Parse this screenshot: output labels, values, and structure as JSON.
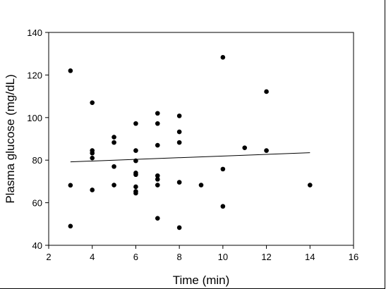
{
  "chart_data": {
    "type": "scatter",
    "title": "",
    "xlabel": "Time (min)",
    "ylabel": "Plasma glucose (mg/dL)",
    "xlim": [
      2,
      16
    ],
    "ylim": [
      40,
      140
    ],
    "xticks": [
      2,
      4,
      6,
      8,
      10,
      12,
      14,
      16
    ],
    "yticks": [
      40,
      60,
      80,
      100,
      120,
      140
    ],
    "xtick_labels": [
      "2",
      "4",
      "6",
      "8",
      "10",
      "12",
      "14",
      "16"
    ],
    "ytick_labels": [
      "40",
      "60",
      "80",
      "100",
      "120",
      "140"
    ],
    "grid": false,
    "legend": "none",
    "point_color": "#000000",
    "points": [
      {
        "x": 3,
        "y": 122
      },
      {
        "x": 3,
        "y": 68.2
      },
      {
        "x": 3,
        "y": 49
      },
      {
        "x": 4,
        "y": 107
      },
      {
        "x": 4,
        "y": 84.5
      },
      {
        "x": 4,
        "y": 83.3
      },
      {
        "x": 4,
        "y": 81
      },
      {
        "x": 4,
        "y": 66
      },
      {
        "x": 5,
        "y": 90.8
      },
      {
        "x": 5,
        "y": 88.3
      },
      {
        "x": 5,
        "y": 77
      },
      {
        "x": 5,
        "y": 68.3
      },
      {
        "x": 6,
        "y": 97.2
      },
      {
        "x": 6,
        "y": 84.5
      },
      {
        "x": 6,
        "y": 79.7
      },
      {
        "x": 6,
        "y": 74
      },
      {
        "x": 6,
        "y": 73.2
      },
      {
        "x": 6,
        "y": 67.5
      },
      {
        "x": 6,
        "y": 65.3
      },
      {
        "x": 6,
        "y": 64.5
      },
      {
        "x": 7,
        "y": 102
      },
      {
        "x": 7,
        "y": 97.2
      },
      {
        "x": 7,
        "y": 87
      },
      {
        "x": 7,
        "y": 72.7
      },
      {
        "x": 7,
        "y": 71
      },
      {
        "x": 7,
        "y": 68.3
      },
      {
        "x": 7,
        "y": 52.7
      },
      {
        "x": 8,
        "y": 100.8
      },
      {
        "x": 8,
        "y": 93.3
      },
      {
        "x": 8,
        "y": 88.3
      },
      {
        "x": 8,
        "y": 69.6
      },
      {
        "x": 8,
        "y": 48.3
      },
      {
        "x": 9,
        "y": 68.3
      },
      {
        "x": 10,
        "y": 128.3
      },
      {
        "x": 10,
        "y": 75.8
      },
      {
        "x": 10,
        "y": 58.3
      },
      {
        "x": 11,
        "y": 85.8
      },
      {
        "x": 12,
        "y": 112.2
      },
      {
        "x": 12,
        "y": 84.5
      },
      {
        "x": 14,
        "y": 68.3
      }
    ],
    "trend_line": {
      "x": [
        3,
        14
      ],
      "y": [
        79.2,
        83.5
      ]
    }
  }
}
